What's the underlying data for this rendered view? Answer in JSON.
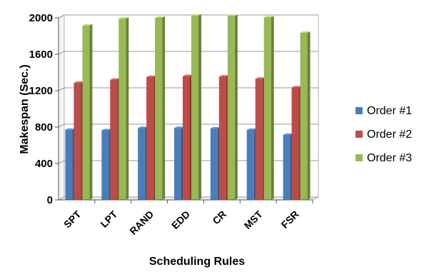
{
  "chart_data": {
    "type": "bar",
    "variant": "3d-clustered",
    "categories": [
      "SPT",
      "LPT",
      "RAND",
      "EDD",
      "CR",
      "MST",
      "FSR"
    ],
    "series": [
      {
        "name": "Order #1",
        "color": "#4A7EBB",
        "values": [
          770,
          765,
          790,
          790,
          785,
          770,
          715
        ]
      },
      {
        "name": "Order #2",
        "color": "#BE4B48",
        "values": [
          1285,
          1320,
          1350,
          1360,
          1355,
          1330,
          1235
        ]
      },
      {
        "name": "Order #3",
        "color": "#98B954",
        "values": [
          1915,
          1990,
          2000,
          2025,
          2020,
          2005,
          1835
        ]
      }
    ],
    "title": "",
    "xlabel": "Scheduling Rules",
    "ylabel": "Makespan (Sec.)",
    "ylim": [
      0,
      2000
    ],
    "yticks": [
      0,
      400,
      800,
      1200,
      1600,
      2000
    ],
    "grid": true,
    "legend_position": "right"
  }
}
